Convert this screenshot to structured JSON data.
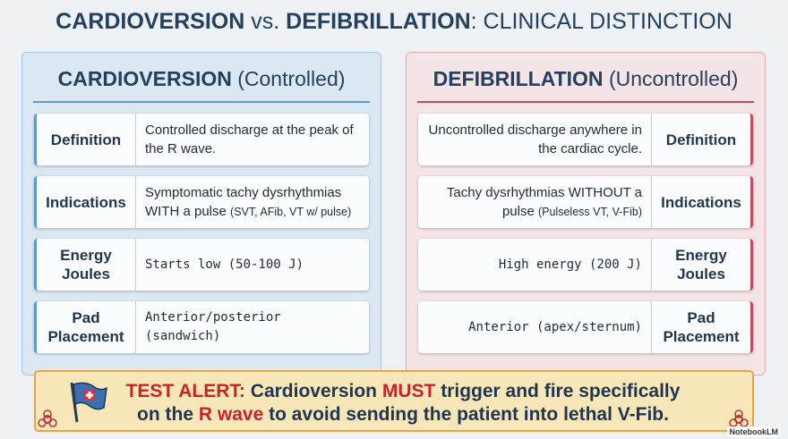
{
  "title": [
    "CARDIOVERSION",
    "vs.",
    "DEFIBRILLATION",
    ": CLINICAL DISTINCTION"
  ],
  "panels": [
    {
      "heading": "CARDIOVERSION",
      "qualifier": "(Controlled)",
      "rows": [
        {
          "label": "Definition",
          "text": "Controlled discharge at the peak of the R wave."
        },
        {
          "label": "Indications",
          "text": "Symptomatic tachy dysrhythmias WITH a pulse",
          "note": "(SVT, AFib, VT w/ pulse)"
        },
        {
          "label": "Energy Joules",
          "text": "Starts low (50-100 J)"
        },
        {
          "label": "Pad Placement",
          "text": "Anterior/posterior (sandwich)"
        }
      ]
    },
    {
      "heading": "DEFIBRILLATION",
      "qualifier": "(Uncontrolled)",
      "rows": [
        {
          "label": "Definition",
          "text": "Uncontrolled discharge anywhere in the cardiac cycle."
        },
        {
          "label": "Indications",
          "text": "Tachy dysrhythmias WITHOUT a pulse",
          "note": "(Pulseless VT, V-Fib)"
        },
        {
          "label": "Energy Joules",
          "text": "High energy (200 J)"
        },
        {
          "label": "Pad Placement",
          "text": "Anterior (apex/sternum)"
        }
      ]
    }
  ],
  "alert": [
    "TEST ALERT:",
    "Cardioversion",
    "MUST",
    "trigger and fire specifically",
    "on the",
    "R wave",
    "to avoid sending the patient into lethal V-Fib."
  ],
  "watermark": "NotebookLM"
}
